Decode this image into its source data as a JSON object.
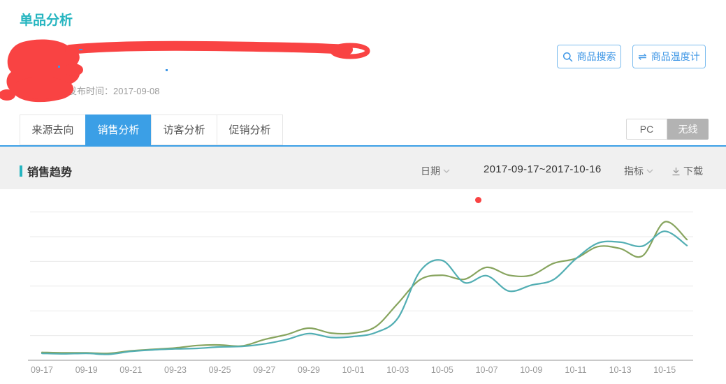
{
  "page": {
    "title": "单品分析"
  },
  "product": {
    "publish_time": "发布时间：2017-09-08"
  },
  "actions": {
    "search_label": "商品搜索",
    "thermometer_label": "商品温度计"
  },
  "tabs": [
    {
      "label": "来源去向",
      "active": false
    },
    {
      "label": "销售分析",
      "active": true
    },
    {
      "label": "访客分析",
      "active": false
    },
    {
      "label": "促销分析",
      "active": false
    }
  ],
  "device_toggle": {
    "pc": "PC",
    "wireless": "无线",
    "selected": "无线"
  },
  "toolbar": {
    "section_title": "销售趋势",
    "date_label": "日期",
    "date_range": "2017-09-17~2017-10-16",
    "metric_label": "指标",
    "download_label": "下载"
  },
  "colors": {
    "accent_blue": "#3b9fe6",
    "title_teal": "#26b5c0",
    "button_blue": "#3f97e6",
    "toolbar_bg": "#f0f0f0",
    "toggle_selected_bg": "#b3b3b3",
    "redaction_red": "#f94343",
    "red_dot": "#f94343",
    "gridline": "#eaeaea",
    "axis_line": "#c9c9c9",
    "tick_label": "#999999"
  },
  "chart_data": {
    "type": "line",
    "title": "销售趋势",
    "x": [
      "09-17",
      "09-18",
      "09-19",
      "09-20",
      "09-21",
      "09-22",
      "09-23",
      "09-24",
      "09-25",
      "09-26",
      "09-27",
      "09-28",
      "09-29",
      "09-30",
      "10-01",
      "10-02",
      "10-03",
      "10-04",
      "10-05",
      "10-06",
      "10-07",
      "10-08",
      "10-09",
      "10-10",
      "10-11",
      "10-12",
      "10-13",
      "10-14",
      "10-15",
      "10-16"
    ],
    "x_tick_labels": [
      "09-17",
      "09-19",
      "09-21",
      "09-23",
      "09-25",
      "09-27",
      "09-29",
      "10-01",
      "10-03",
      "10-05",
      "10-07",
      "10-09",
      "10-11",
      "10-13",
      "10-15"
    ],
    "series": [
      {
        "name": "olive-line",
        "color": "#87a45e",
        "values": [
          16,
          15,
          15,
          14,
          19,
          22,
          25,
          30,
          31,
          29,
          42,
          52,
          65,
          55,
          55,
          68,
          115,
          163,
          172,
          164,
          188,
          172,
          172,
          196,
          206,
          230,
          226,
          211,
          280,
          244
        ]
      },
      {
        "name": "teal-line",
        "color": "#52aeb3",
        "values": [
          14,
          13,
          14,
          12,
          18,
          21,
          23,
          24,
          27,
          28,
          33,
          42,
          54,
          46,
          48,
          56,
          85,
          180,
          202,
          157,
          171,
          140,
          152,
          163,
          205,
          237,
          239,
          231,
          261,
          232
        ]
      }
    ],
    "ylim": [
      0,
      350
    ],
    "y_grid_step": 50,
    "y_tick_labels_visible": false,
    "grid": true,
    "legend": "none"
  }
}
